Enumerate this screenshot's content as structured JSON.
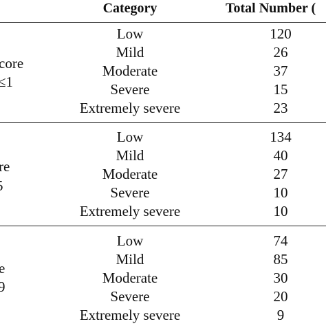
{
  "header": {
    "col1": "Category",
    "col2": "Total Number ("
  },
  "groups": [
    {
      "label_line1": "core",
      "label_line2": "≤1",
      "rows": [
        {
          "category": "Low",
          "total": "120"
        },
        {
          "category": "Mild",
          "total": "26"
        },
        {
          "category": "Moderate",
          "total": "37"
        },
        {
          "category": "Severe",
          "total": "15"
        },
        {
          "category": "Extremely severe",
          "total": "23"
        }
      ]
    },
    {
      "label_line1": "re",
      "label_line2": "5",
      "rows": [
        {
          "category": "Low",
          "total": "134"
        },
        {
          "category": "Mild",
          "total": "40"
        },
        {
          "category": "Moderate",
          "total": "27"
        },
        {
          "category": "Severe",
          "total": "10"
        },
        {
          "category": "Extremely severe",
          "total": "10"
        }
      ]
    },
    {
      "label_line1": "e",
      "label_line2": "9",
      "rows": [
        {
          "category": "Low",
          "total": "74"
        },
        {
          "category": "Mild",
          "total": "85"
        },
        {
          "category": "Moderate",
          "total": "30"
        },
        {
          "category": "Severe",
          "total": "20"
        },
        {
          "category": "Extremely severe",
          "total": "9"
        }
      ]
    }
  ]
}
